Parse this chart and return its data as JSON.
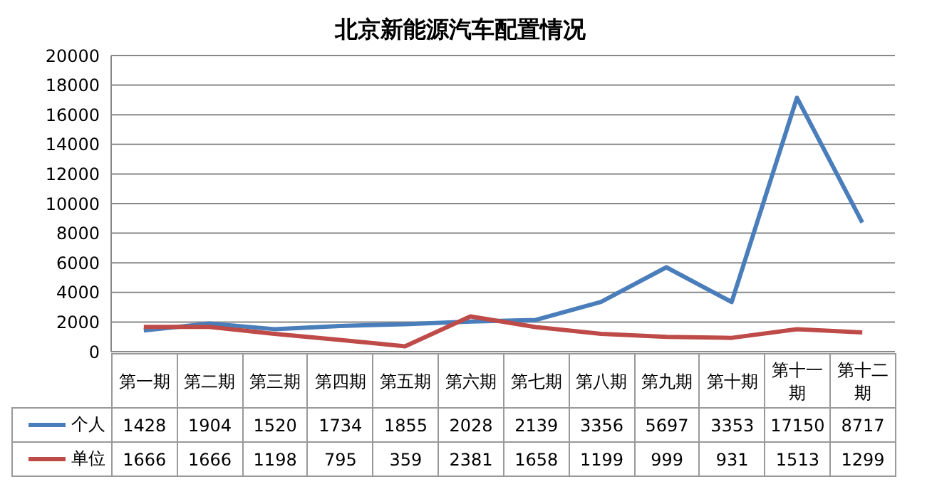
{
  "chart_data": {
    "type": "line",
    "title": "北京新能源汽车配置情况",
    "categories": [
      "第一期",
      "第二期",
      "第三期",
      "第四期",
      "第五期",
      "第六期",
      "第七期",
      "第八期",
      "第九期",
      "第十期",
      "第十一期",
      "第十二期"
    ],
    "series": [
      {
        "name": "个人",
        "color": "#4a7ebb",
        "values": [
          1428,
          1904,
          1520,
          1734,
          1855,
          2028,
          2139,
          3356,
          5697,
          3353,
          17150,
          8717
        ]
      },
      {
        "name": "单位",
        "color": "#be4b48",
        "values": [
          1666,
          1666,
          1198,
          795,
          359,
          2381,
          1658,
          1199,
          999,
          931,
          1513,
          1299
        ]
      }
    ],
    "ylim": [
      0,
      20000
    ],
    "yticks": [
      0,
      2000,
      4000,
      6000,
      8000,
      10000,
      12000,
      14000,
      16000,
      18000,
      20000
    ],
    "grid": "y",
    "legend": "bottom",
    "data_labels": true,
    "marker": "none",
    "line_style": "solid"
  }
}
